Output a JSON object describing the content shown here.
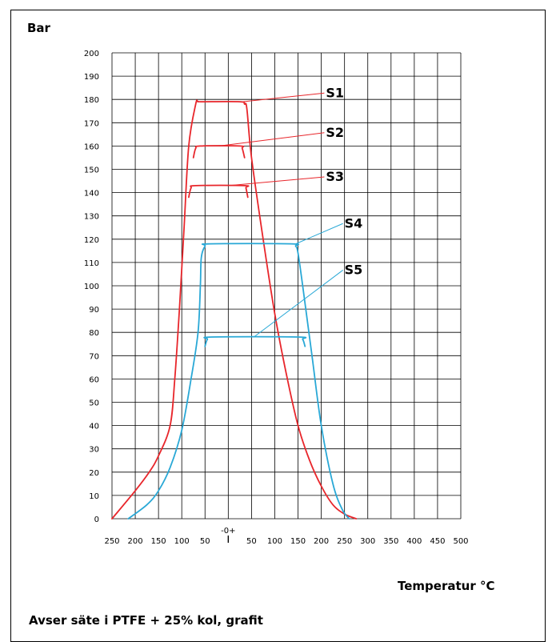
{
  "chart_data": {
    "type": "line",
    "ylabel": "Bar",
    "xlabel": "Temperatur °C",
    "caption": "Avser säte i PTFE + 25% kol, grafit",
    "ylim": [
      0,
      200
    ],
    "y_ticks": [
      0,
      10,
      20,
      30,
      40,
      50,
      60,
      70,
      80,
      90,
      100,
      110,
      120,
      130,
      140,
      150,
      160,
      170,
      180,
      190,
      200
    ],
    "xlim": [
      -250,
      500
    ],
    "x_ticks": [
      -250,
      -200,
      -150,
      -100,
      -50,
      0,
      50,
      100,
      150,
      200,
      250,
      300,
      350,
      400,
      450,
      500
    ],
    "x_tick_labels": [
      "250",
      "200",
      "150",
      "100",
      "50",
      "-0+",
      "50",
      "100",
      "150",
      "200",
      "250",
      "300",
      "350",
      "400",
      "450",
      "500"
    ],
    "grid": true,
    "series": [
      {
        "name": "S1",
        "color": "#e8262b",
        "x": [
          -250,
          -200,
          -170,
          -150,
          -125,
          -115,
          -105,
          -95,
          -85,
          -70,
          -65,
          -55,
          25,
          35,
          40,
          50,
          75,
          100,
          125,
          150,
          175,
          200,
          225,
          250,
          275
        ],
        "y": [
          0,
          12,
          20,
          27,
          40,
          60,
          90,
          125,
          160,
          178,
          179,
          179,
          179,
          178,
          176,
          155,
          120,
          88,
          62,
          40,
          25,
          14,
          6,
          2,
          0
        ]
      },
      {
        "name": "S2",
        "color": "#e8262b",
        "x": [
          -75,
          -70,
          -60,
          25,
          30,
          35
        ],
        "y": [
          155,
          159,
          160,
          160,
          159,
          155
        ]
      },
      {
        "name": "S3",
        "color": "#e8262b",
        "x": [
          -85,
          -80,
          -70,
          35,
          38,
          42
        ],
        "y": [
          138,
          142,
          143,
          143,
          142,
          138
        ]
      },
      {
        "name": "S4",
        "color": "#29a8d6",
        "x": [
          -215,
          -175,
          -150,
          -125,
          -100,
          -80,
          -65,
          -60,
          -58,
          -50,
          -40,
          135,
          145,
          150,
          160,
          180,
          200,
          225,
          245,
          260
        ],
        "y": [
          0,
          6,
          12,
          22,
          38,
          60,
          80,
          100,
          112,
          117,
          118,
          118,
          117,
          114,
          100,
          70,
          40,
          15,
          4,
          0
        ]
      },
      {
        "name": "S5",
        "color": "#29a8d6",
        "x": [
          -50,
          -45,
          -35,
          150,
          160,
          165
        ],
        "y": [
          74,
          77,
          78,
          78,
          77,
          74
        ]
      }
    ],
    "annotations": [
      {
        "text": "S1",
        "label_at": [
          210,
          181
        ],
        "points_to": [
          30,
          179
        ]
      },
      {
        "text": "S2",
        "label_at": [
          210,
          164
        ],
        "points_to": [
          -20,
          160
        ]
      },
      {
        "text": "S3",
        "label_at": [
          210,
          145
        ],
        "points_to": [
          0,
          143
        ]
      },
      {
        "text": "S4",
        "label_at": [
          250,
          125
        ],
        "points_to": [
          145,
          118
        ]
      },
      {
        "text": "S5",
        "label_at": [
          250,
          105
        ],
        "points_to": [
          55,
          78
        ]
      }
    ]
  }
}
